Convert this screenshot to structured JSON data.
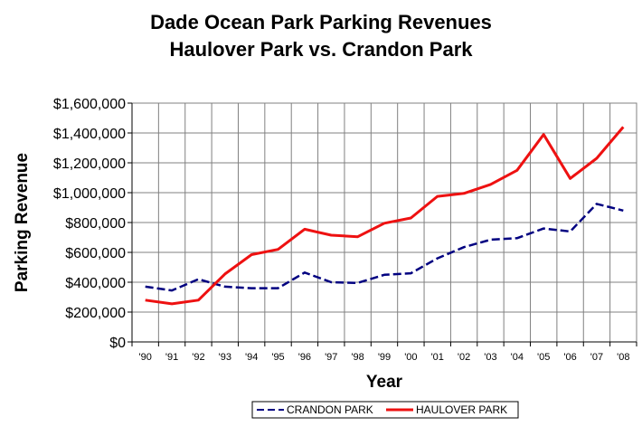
{
  "chart_data": {
    "type": "line",
    "title": "Dade Ocean Park Parking Revenues",
    "subtitle": "Haulover Park vs. Crandon Park",
    "xlabel": "Year",
    "ylabel": "Parking Revenue",
    "categories": [
      "'90",
      "'91",
      "'92",
      "'93",
      "'94",
      "'95",
      "'96",
      "'97",
      "'98",
      "'99",
      "'00",
      "'01",
      "'02",
      "'03",
      "'04",
      "'05",
      "'06",
      "'07",
      "'08"
    ],
    "ylim": [
      0,
      1600000
    ],
    "yticks": [
      "$0",
      "$200,000",
      "$400,000",
      "$600,000",
      "$800,000",
      "$1,000,000",
      "$1,200,000",
      "$1,400,000",
      "$1,600,000"
    ],
    "grid": true,
    "legend_position": "bottom",
    "series": [
      {
        "name": "CRANDON PARK",
        "color": "#000080",
        "style": "dashed",
        "values": [
          370000,
          345000,
          420000,
          370000,
          360000,
          360000,
          465000,
          400000,
          395000,
          450000,
          460000,
          560000,
          635000,
          685000,
          695000,
          760000,
          740000,
          925000,
          880000
        ]
      },
      {
        "name": "HAULOVER PARK",
        "color": "#ee1111",
        "style": "solid",
        "values": [
          280000,
          255000,
          280000,
          455000,
          585000,
          620000,
          755000,
          715000,
          705000,
          795000,
          830000,
          975000,
          995000,
          1055000,
          1150000,
          1390000,
          1095000,
          1230000,
          1440000
        ]
      }
    ]
  }
}
